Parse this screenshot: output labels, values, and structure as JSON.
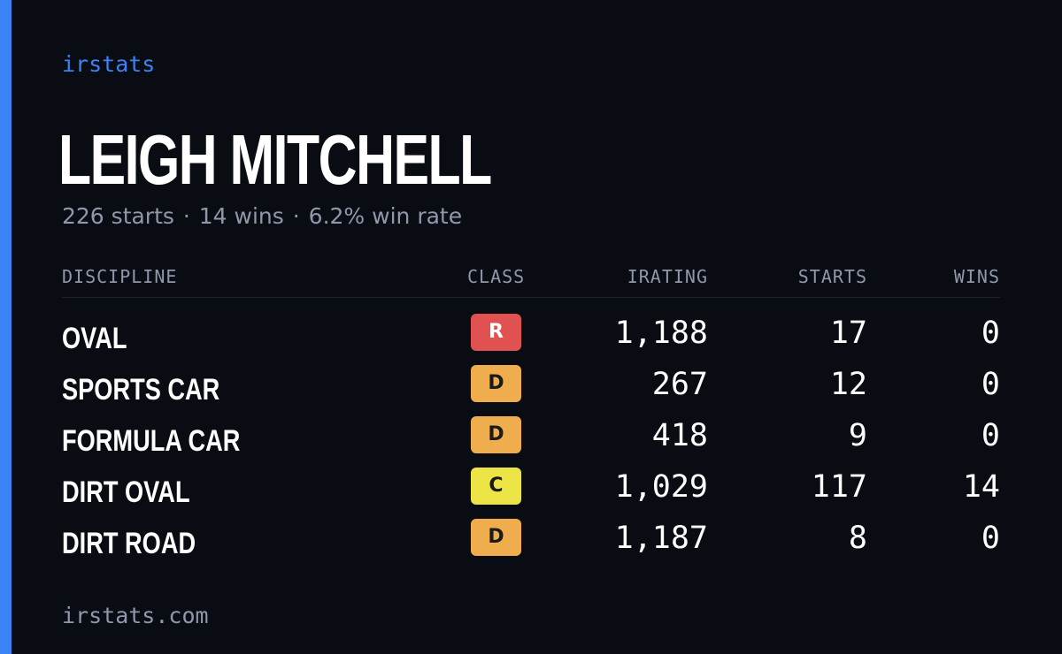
{
  "colors": {
    "background": "#0a0c13",
    "accent": "#3b82f6",
    "muted_text": "#8f98aa",
    "class_R": "#e05252",
    "class_D": "#f0ad4e",
    "class_C": "#ece545"
  },
  "header": {
    "brand": "irstats",
    "driver_name": "LEIGH MITCHELL",
    "summary": {
      "starts": "226 starts",
      "wins": "14 wins",
      "win_rate": "6.2% win rate",
      "separator": "·"
    }
  },
  "table": {
    "columns": {
      "discipline": "DISCIPLINE",
      "class": "CLASS",
      "irating": "IRATING",
      "starts": "STARTS",
      "wins": "WINS"
    },
    "rows": [
      {
        "discipline": "OVAL",
        "class": "R",
        "class_color": "#e05252",
        "irating": "1,188",
        "starts": "17",
        "wins": "0"
      },
      {
        "discipline": "SPORTS CAR",
        "class": "D",
        "class_color": "#f0ad4e",
        "irating": "267",
        "starts": "12",
        "wins": "0"
      },
      {
        "discipline": "FORMULA CAR",
        "class": "D",
        "class_color": "#f0ad4e",
        "irating": "418",
        "starts": "9",
        "wins": "0"
      },
      {
        "discipline": "DIRT OVAL",
        "class": "C",
        "class_color": "#ece545",
        "irating": "1,029",
        "starts": "117",
        "wins": "14"
      },
      {
        "discipline": "DIRT ROAD",
        "class": "D",
        "class_color": "#f0ad4e",
        "irating": "1,187",
        "starts": "8",
        "wins": "0"
      }
    ]
  },
  "footer": {
    "site": "irstats.com"
  }
}
